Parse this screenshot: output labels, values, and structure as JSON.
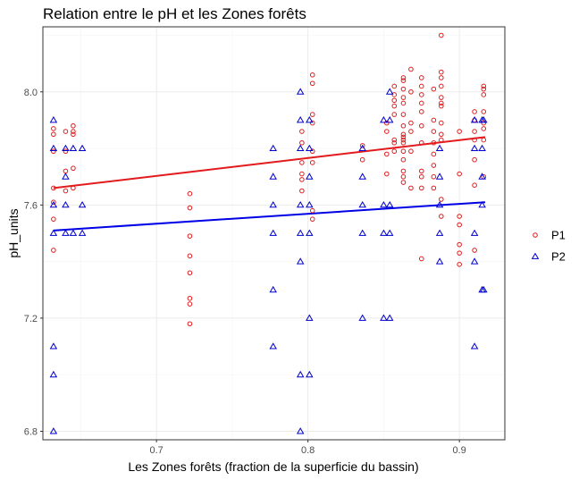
{
  "chart_data": {
    "type": "scatter",
    "title": "Relation entre le pH et les Zones forêts",
    "xlabel": "Les Zones forêts (fraction de la superficie du bassin)",
    "ylabel": "pH_units",
    "xlim": [
      0.625,
      0.93
    ],
    "ylim": [
      6.77,
      8.23
    ],
    "x_ticks": [
      0.7,
      0.8,
      0.9
    ],
    "x_tick_labels": [
      "0.7",
      "0.8",
      "0.9"
    ],
    "y_ticks": [
      6.8,
      7.2,
      7.6,
      8.0
    ],
    "y_tick_labels": [
      "6.8",
      "7.2",
      "7.6",
      "8.0"
    ],
    "grid": true,
    "legend_position": "right",
    "series": [
      {
        "name": "P1",
        "marker": "circle",
        "color": "#e41a1c",
        "trend_color": "#e31a1c",
        "trend": [
          [
            0.632,
            7.66
          ],
          [
            0.917,
            7.84
          ]
        ],
        "points": [
          [
            0.632,
            7.87
          ],
          [
            0.632,
            7.85
          ],
          [
            0.632,
            7.79
          ],
          [
            0.632,
            7.66
          ],
          [
            0.632,
            7.61
          ],
          [
            0.632,
            7.55
          ],
          [
            0.632,
            7.44
          ],
          [
            0.64,
            7.86
          ],
          [
            0.64,
            7.79
          ],
          [
            0.64,
            7.72
          ],
          [
            0.64,
            7.65
          ],
          [
            0.645,
            7.88
          ],
          [
            0.645,
            7.86
          ],
          [
            0.645,
            7.85
          ],
          [
            0.645,
            7.73
          ],
          [
            0.645,
            7.66
          ],
          [
            0.722,
            7.64
          ],
          [
            0.722,
            7.59
          ],
          [
            0.722,
            7.49
          ],
          [
            0.722,
            7.42
          ],
          [
            0.722,
            7.36
          ],
          [
            0.722,
            7.27
          ],
          [
            0.722,
            7.25
          ],
          [
            0.722,
            7.18
          ],
          [
            0.796,
            7.86
          ],
          [
            0.796,
            7.82
          ],
          [
            0.796,
            7.75
          ],
          [
            0.796,
            7.71
          ],
          [
            0.796,
            7.69
          ],
          [
            0.796,
            7.65
          ],
          [
            0.803,
            8.06
          ],
          [
            0.803,
            8.03
          ],
          [
            0.803,
            7.92
          ],
          [
            0.803,
            7.89
          ],
          [
            0.803,
            7.79
          ],
          [
            0.803,
            7.75
          ],
          [
            0.803,
            7.58
          ],
          [
            0.803,
            7.55
          ],
          [
            0.836,
            7.81
          ],
          [
            0.836,
            7.76
          ],
          [
            0.852,
            7.89
          ],
          [
            0.852,
            7.86
          ],
          [
            0.852,
            7.78
          ],
          [
            0.852,
            7.71
          ],
          [
            0.857,
            8.02
          ],
          [
            0.857,
            7.99
          ],
          [
            0.857,
            7.97
          ],
          [
            0.857,
            7.95
          ],
          [
            0.857,
            7.92
          ],
          [
            0.857,
            7.83
          ],
          [
            0.857,
            7.82
          ],
          [
            0.857,
            7.79
          ],
          [
            0.863,
            8.05
          ],
          [
            0.863,
            8.04
          ],
          [
            0.863,
            8.01
          ],
          [
            0.863,
            7.98
          ],
          [
            0.863,
            7.96
          ],
          [
            0.863,
            7.92
          ],
          [
            0.863,
            7.88
          ],
          [
            0.863,
            7.85
          ],
          [
            0.863,
            7.84
          ],
          [
            0.863,
            7.83
          ],
          [
            0.863,
            7.82
          ],
          [
            0.863,
            7.79
          ],
          [
            0.863,
            7.76
          ],
          [
            0.863,
            7.72
          ],
          [
            0.863,
            7.7
          ],
          [
            0.863,
            7.68
          ],
          [
            0.868,
            8.08
          ],
          [
            0.868,
            8.0
          ],
          [
            0.868,
            7.89
          ],
          [
            0.868,
            7.86
          ],
          [
            0.868,
            7.79
          ],
          [
            0.868,
            7.66
          ],
          [
            0.875,
            8.05
          ],
          [
            0.875,
            8.02
          ],
          [
            0.875,
            7.99
          ],
          [
            0.875,
            7.96
          ],
          [
            0.875,
            7.93
          ],
          [
            0.875,
            7.88
          ],
          [
            0.875,
            7.82
          ],
          [
            0.875,
            7.72
          ],
          [
            0.875,
            7.7
          ],
          [
            0.875,
            7.66
          ],
          [
            0.875,
            7.41
          ],
          [
            0.883,
            8.01
          ],
          [
            0.883,
            7.9
          ],
          [
            0.883,
            7.86
          ],
          [
            0.883,
            7.82
          ],
          [
            0.883,
            7.78
          ],
          [
            0.883,
            7.74
          ],
          [
            0.883,
            7.7
          ],
          [
            0.883,
            7.66
          ],
          [
            0.888,
            8.2
          ],
          [
            0.888,
            8.07
          ],
          [
            0.888,
            8.05
          ],
          [
            0.888,
            8.02
          ],
          [
            0.888,
            7.98
          ],
          [
            0.888,
            7.96
          ],
          [
            0.888,
            7.95
          ],
          [
            0.888,
            7.89
          ],
          [
            0.888,
            7.85
          ],
          [
            0.888,
            7.83
          ],
          [
            0.888,
            7.62
          ],
          [
            0.888,
            7.56
          ],
          [
            0.9,
            7.86
          ],
          [
            0.9,
            7.71
          ],
          [
            0.9,
            7.56
          ],
          [
            0.9,
            7.53
          ],
          [
            0.9,
            7.46
          ],
          [
            0.9,
            7.43
          ],
          [
            0.9,
            7.39
          ],
          [
            0.91,
            7.93
          ],
          [
            0.91,
            7.9
          ],
          [
            0.91,
            7.86
          ],
          [
            0.91,
            7.83
          ],
          [
            0.91,
            7.76
          ],
          [
            0.91,
            7.67
          ],
          [
            0.91,
            7.44
          ],
          [
            0.916,
            8.02
          ],
          [
            0.916,
            8.01
          ],
          [
            0.916,
            7.99
          ],
          [
            0.916,
            7.93
          ],
          [
            0.916,
            7.89
          ],
          [
            0.916,
            7.87
          ],
          [
            0.916,
            7.83
          ],
          [
            0.916,
            7.7
          ]
        ]
      },
      {
        "name": "P2",
        "marker": "triangle",
        "color": "#0000cd",
        "trend_color": "#0000e6",
        "trend": [
          [
            0.632,
            7.51
          ],
          [
            0.917,
            7.61
          ]
        ],
        "points": [
          [
            0.632,
            7.9
          ],
          [
            0.632,
            7.8
          ],
          [
            0.632,
            7.6
          ],
          [
            0.632,
            7.5
          ],
          [
            0.632,
            7.1
          ],
          [
            0.632,
            7.0
          ],
          [
            0.632,
            6.8
          ],
          [
            0.64,
            7.8
          ],
          [
            0.64,
            7.7
          ],
          [
            0.64,
            7.6
          ],
          [
            0.64,
            7.5
          ],
          [
            0.645,
            7.8
          ],
          [
            0.645,
            7.5
          ],
          [
            0.651,
            7.8
          ],
          [
            0.651,
            7.6
          ],
          [
            0.651,
            7.5
          ],
          [
            0.777,
            7.8
          ],
          [
            0.777,
            7.7
          ],
          [
            0.777,
            7.6
          ],
          [
            0.777,
            7.5
          ],
          [
            0.777,
            7.3
          ],
          [
            0.777,
            7.1
          ],
          [
            0.795,
            8.0
          ],
          [
            0.795,
            7.9
          ],
          [
            0.795,
            7.8
          ],
          [
            0.795,
            7.6
          ],
          [
            0.795,
            7.5
          ],
          [
            0.795,
            7.4
          ],
          [
            0.795,
            7.0
          ],
          [
            0.795,
            6.8
          ],
          [
            0.801,
            7.9
          ],
          [
            0.801,
            7.8
          ],
          [
            0.801,
            7.7
          ],
          [
            0.801,
            7.6
          ],
          [
            0.801,
            7.5
          ],
          [
            0.801,
            7.2
          ],
          [
            0.801,
            7.0
          ],
          [
            0.836,
            7.8
          ],
          [
            0.836,
            7.7
          ],
          [
            0.836,
            7.6
          ],
          [
            0.836,
            7.5
          ],
          [
            0.836,
            7.2
          ],
          [
            0.85,
            7.9
          ],
          [
            0.85,
            7.6
          ],
          [
            0.85,
            7.5
          ],
          [
            0.85,
            7.2
          ],
          [
            0.854,
            8.0
          ],
          [
            0.854,
            7.9
          ],
          [
            0.854,
            7.6
          ],
          [
            0.854,
            7.5
          ],
          [
            0.854,
            7.2
          ],
          [
            0.887,
            7.8
          ],
          [
            0.887,
            7.7
          ],
          [
            0.887,
            7.6
          ],
          [
            0.887,
            7.5
          ],
          [
            0.887,
            7.4
          ],
          [
            0.91,
            7.9
          ],
          [
            0.91,
            7.8
          ],
          [
            0.91,
            7.5
          ],
          [
            0.91,
            7.4
          ],
          [
            0.91,
            7.1
          ],
          [
            0.915,
            7.9
          ],
          [
            0.915,
            7.8
          ],
          [
            0.915,
            7.7
          ],
          [
            0.915,
            7.6
          ],
          [
            0.915,
            7.3
          ],
          [
            0.916,
            7.9
          ],
          [
            0.916,
            7.3
          ]
        ]
      }
    ]
  }
}
